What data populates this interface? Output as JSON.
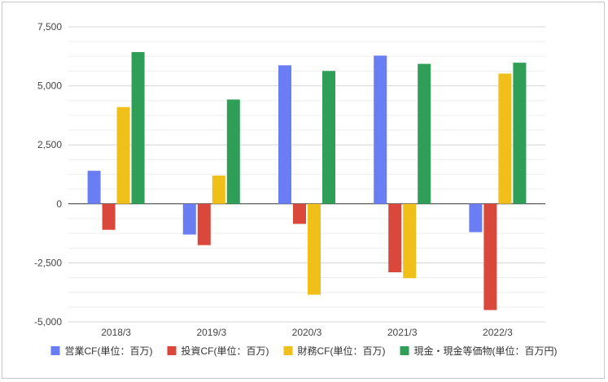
{
  "chart_data": {
    "type": "bar",
    "title": "",
    "xlabel": "",
    "ylabel": "",
    "categories": [
      "2018/3",
      "2019/3",
      "2020/3",
      "2021/3",
      "2022/3"
    ],
    "ylim": [
      -5000,
      7500
    ],
    "yticks": [
      -5000,
      -2500,
      0,
      2500,
      5000,
      7500
    ],
    "ytick_labels": [
      "-5,000",
      "-2,500",
      "0",
      "2,500",
      "5,000",
      "7,500"
    ],
    "minor_gridlines": true,
    "legend_position": "bottom",
    "series": [
      {
        "name": "営業CF(単位：百万)",
        "color": "#6a7ef3",
        "values": [
          1400,
          -1300,
          5870,
          6280,
          -1200
        ]
      },
      {
        "name": "投資CF(単位：百万)",
        "color": "#d9483b",
        "values": [
          -1100,
          -1750,
          -850,
          -2900,
          -4500
        ]
      },
      {
        "name": "財務CF(単位：百万)",
        "color": "#f0bf1a",
        "values": [
          4100,
          1200,
          -3850,
          -3150,
          5520
        ]
      },
      {
        "name": "現金・現金等価物(単位：百万円)",
        "color": "#2f9e57",
        "values": [
          6430,
          4420,
          5630,
          5930,
          5980
        ]
      }
    ]
  }
}
